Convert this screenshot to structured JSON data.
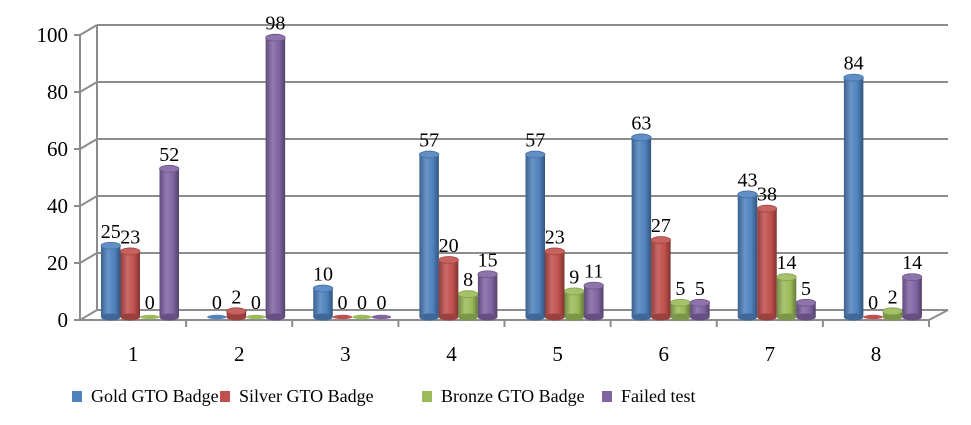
{
  "chart_data": {
    "type": "bar",
    "style": "3d-cylinder",
    "title": "",
    "xlabel": "",
    "ylabel": "",
    "categories": [
      "1",
      "2",
      "3",
      "4",
      "5",
      "6",
      "7",
      "8"
    ],
    "series": [
      {
        "name": "Gold GTO Badge",
        "color": "#4f81bd",
        "values": [
          25,
          0,
          10,
          57,
          57,
          63,
          43,
          84
        ]
      },
      {
        "name": "Silver GTO Badge",
        "color": "#c0504d",
        "values": [
          23,
          2,
          0,
          20,
          23,
          27,
          38,
          0
        ]
      },
      {
        "name": "Bronze GTO Badge",
        "color": "#9bbb59",
        "values": [
          0,
          0,
          0,
          8,
          9,
          5,
          14,
          2
        ]
      },
      {
        "name": "Failed test",
        "color": "#8064a2",
        "values": [
          52,
          98,
          0,
          15,
          11,
          5,
          5,
          14
        ]
      }
    ],
    "ylim": [
      0,
      100
    ],
    "yticks": [
      0,
      20,
      40,
      60,
      80,
      100
    ],
    "grid": true,
    "legend_position": "bottom",
    "data_labels": true
  }
}
